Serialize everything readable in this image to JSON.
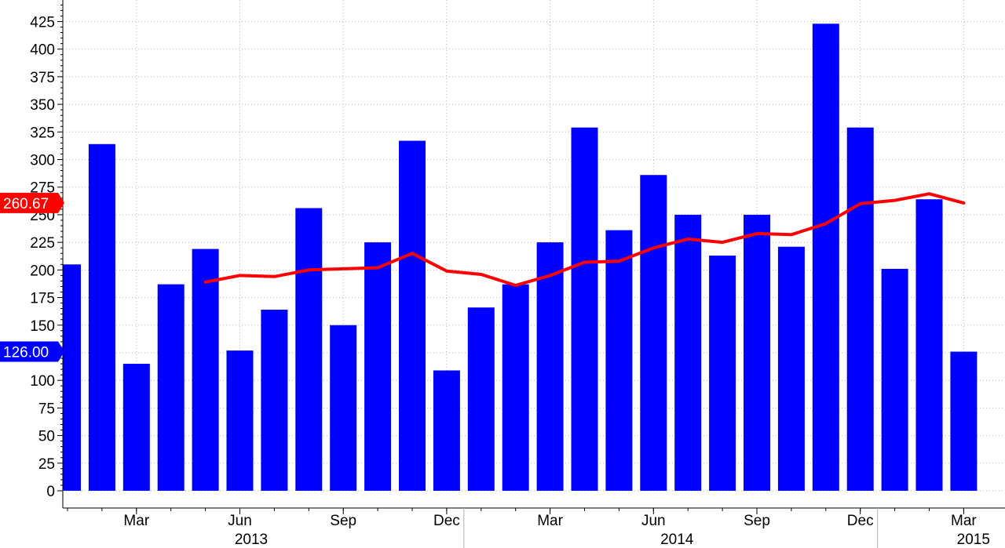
{
  "chart_data": {
    "type": "bar",
    "x": [
      "2013-01",
      "2013-02",
      "2013-03",
      "2013-04",
      "2013-05",
      "2013-06",
      "2013-07",
      "2013-08",
      "2013-09",
      "2013-10",
      "2013-11",
      "2013-12",
      "2014-01",
      "2014-02",
      "2014-03",
      "2014-04",
      "2014-05",
      "2014-06",
      "2014-07",
      "2014-08",
      "2014-09",
      "2014-10",
      "2014-11",
      "2014-12",
      "2015-01",
      "2015-02",
      "2015-03"
    ],
    "series": [
      {
        "kind": "bar",
        "color": "#0000ff",
        "values": [
          205,
          314,
          115,
          187,
          219,
          127,
          164,
          256,
          150,
          225,
          317,
          109,
          166,
          187,
          225,
          329,
          236,
          286,
          250,
          213,
          250,
          221,
          423,
          329,
          201,
          264,
          126
        ]
      },
      {
        "kind": "line",
        "color": "#ff0000",
        "values": [
          null,
          null,
          null,
          null,
          189,
          195,
          194,
          200,
          201,
          202,
          215,
          199,
          196,
          186,
          195,
          207,
          208,
          220,
          228,
          225,
          233,
          232,
          242,
          260,
          263,
          269,
          260.67
        ]
      }
    ],
    "ylim": [
      0,
      440
    ],
    "yticks": [
      0,
      25,
      50,
      75,
      100,
      125,
      150,
      175,
      200,
      225,
      250,
      275,
      300,
      325,
      350,
      375,
      400,
      425
    ],
    "month_ticks": [
      {
        "label": "Mar",
        "x": "2013-03"
      },
      {
        "label": "Jun",
        "x": "2013-06"
      },
      {
        "label": "Sep",
        "x": "2013-09"
      },
      {
        "label": "Dec",
        "x": "2013-12"
      },
      {
        "label": "Mar",
        "x": "2014-03"
      },
      {
        "label": "Jun",
        "x": "2014-06"
      },
      {
        "label": "Sep",
        "x": "2014-09"
      },
      {
        "label": "Dec",
        "x": "2014-12"
      },
      {
        "label": "Mar",
        "x": "2015-03"
      }
    ],
    "years": [
      "2013",
      "2014",
      "2015"
    ],
    "last_value_tags": [
      {
        "text": "260.67",
        "value": 260.67,
        "color": "#ff0000"
      },
      {
        "text": "126.00",
        "value": 126,
        "color": "#0000ff"
      }
    ],
    "grid": true,
    "legend": "none"
  }
}
